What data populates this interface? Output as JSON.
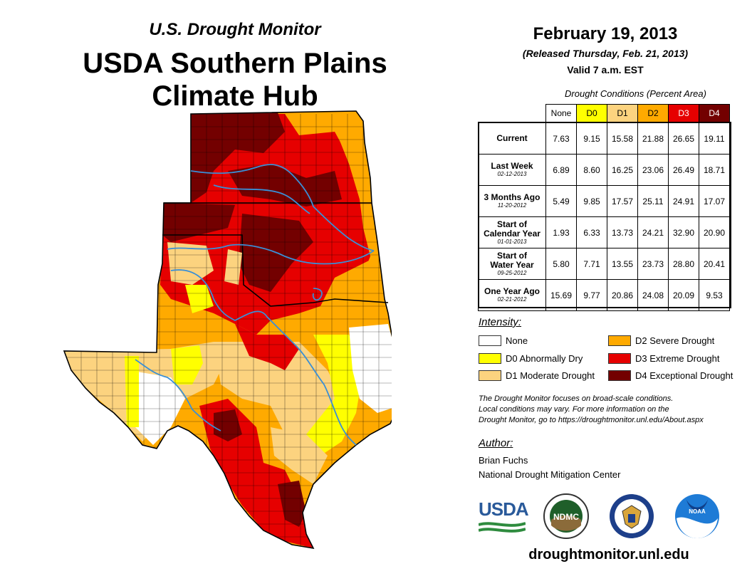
{
  "header": {
    "subtitle": "U.S. Drought Monitor",
    "title_line1": "USDA Southern Plains",
    "title_line2": "Climate Hub"
  },
  "info": {
    "date": "February 19, 2013",
    "released": "(Released Thursday, Feb. 21, 2013)",
    "valid": "Valid 7 a.m. EST"
  },
  "table": {
    "caption": "Drought Conditions (Percent Area)",
    "columns": [
      "None",
      "D0",
      "D1",
      "D2",
      "D3",
      "D4"
    ],
    "column_colors": [
      "#ffffff",
      "#ffff00",
      "#fcd37f",
      "#ffaa00",
      "#e60000",
      "#730000"
    ],
    "rows": [
      {
        "label": "Current",
        "label2": "",
        "date": "",
        "values": [
          "7.63",
          "9.15",
          "15.58",
          "21.88",
          "26.65",
          "19.11"
        ]
      },
      {
        "label": "Last Week",
        "label2": "",
        "date": "02-12-2013",
        "values": [
          "6.89",
          "8.60",
          "16.25",
          "23.06",
          "26.49",
          "18.71"
        ]
      },
      {
        "label": "3 Months Ago",
        "label2": "",
        "date": "11-20-2012",
        "values": [
          "5.49",
          "9.85",
          "17.57",
          "25.11",
          "24.91",
          "17.07"
        ]
      },
      {
        "label": "Start of",
        "label2": "Calendar Year",
        "date": "01-01-2013",
        "values": [
          "1.93",
          "6.33",
          "13.73",
          "24.21",
          "32.90",
          "20.90"
        ]
      },
      {
        "label": "Start of",
        "label2": "Water Year",
        "date": "09-25-2012",
        "values": [
          "5.80",
          "7.71",
          "13.55",
          "23.73",
          "28.80",
          "20.41"
        ]
      },
      {
        "label": "One Year Ago",
        "label2": "",
        "date": "02-21-2012",
        "values": [
          "15.69",
          "9.77",
          "20.86",
          "24.08",
          "20.09",
          "9.53"
        ]
      }
    ]
  },
  "legend": {
    "title": "Intensity:",
    "items": [
      {
        "label": "None",
        "color": "#ffffff"
      },
      {
        "label": "D0 Abnormally Dry",
        "color": "#ffff00"
      },
      {
        "label": "D1 Moderate Drought",
        "color": "#fcd37f"
      },
      {
        "label": "D2 Severe Drought",
        "color": "#ffaa00"
      },
      {
        "label": "D3 Extreme Drought",
        "color": "#e60000"
      },
      {
        "label": "D4 Exceptional Drought",
        "color": "#730000"
      }
    ]
  },
  "note": {
    "line1": "The Drought Monitor focuses on broad-scale conditions.",
    "line2": "Local conditions may vary. For more information on the",
    "line3": "Drought Monitor, go to https://droughtmonitor.unl.edu/About.aspx"
  },
  "author": {
    "title": "Author:",
    "name": "Brian Fuchs",
    "org": "National Drought Mitigation Center"
  },
  "logos": {
    "usda": "USDA",
    "ndmc": "NDMC",
    "noaa": "NOAA"
  },
  "footer": {
    "url": "droughtmonitor.unl.edu"
  }
}
